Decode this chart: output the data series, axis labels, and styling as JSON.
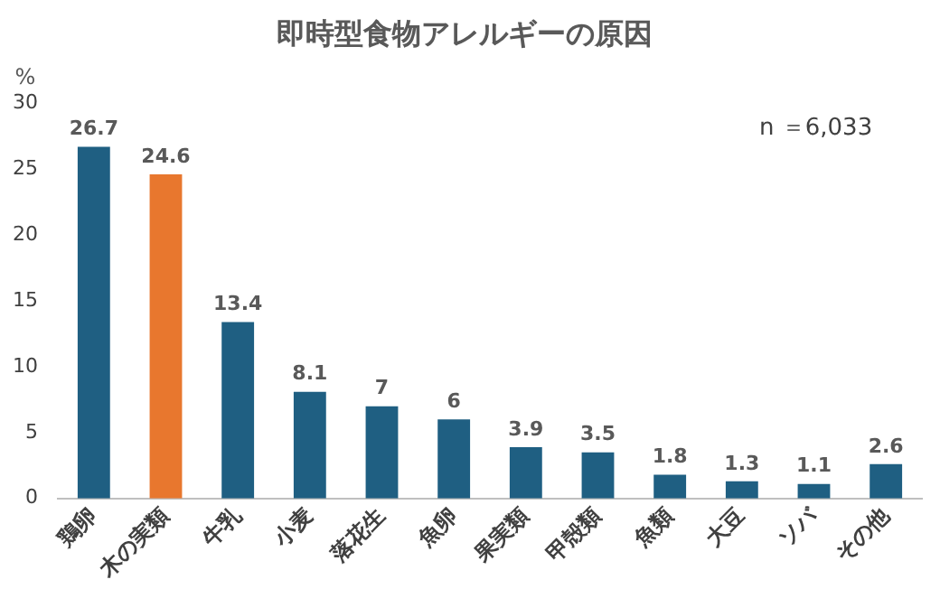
{
  "chart_data": {
    "type": "bar",
    "title": "即時型食物アレルギーの原因",
    "ylabel": "%",
    "categories": [
      "鶏卵",
      "木の実類",
      "牛乳",
      "小麦",
      "落花生",
      "魚卵",
      "果実類",
      "甲殻類",
      "魚類",
      "大豆",
      "ソバ",
      "その他"
    ],
    "values": [
      26.7,
      24.6,
      13.4,
      8.1,
      7,
      6,
      3.9,
      3.5,
      1.8,
      1.3,
      1.1,
      2.6
    ],
    "colors": [
      "#1f5f82",
      "#e8772e",
      "#1f5f82",
      "#1f5f82",
      "#1f5f82",
      "#1f5f82",
      "#1f5f82",
      "#1f5f82",
      "#1f5f82",
      "#1f5f82",
      "#1f5f82",
      "#1f5f82"
    ],
    "ylim": [
      0,
      30
    ],
    "yticks": [
      0,
      5,
      10,
      15,
      20,
      25,
      30
    ],
    "grid": false,
    "legend": false,
    "data_labels": true,
    "annotations": [
      "n ＝6,033"
    ]
  }
}
